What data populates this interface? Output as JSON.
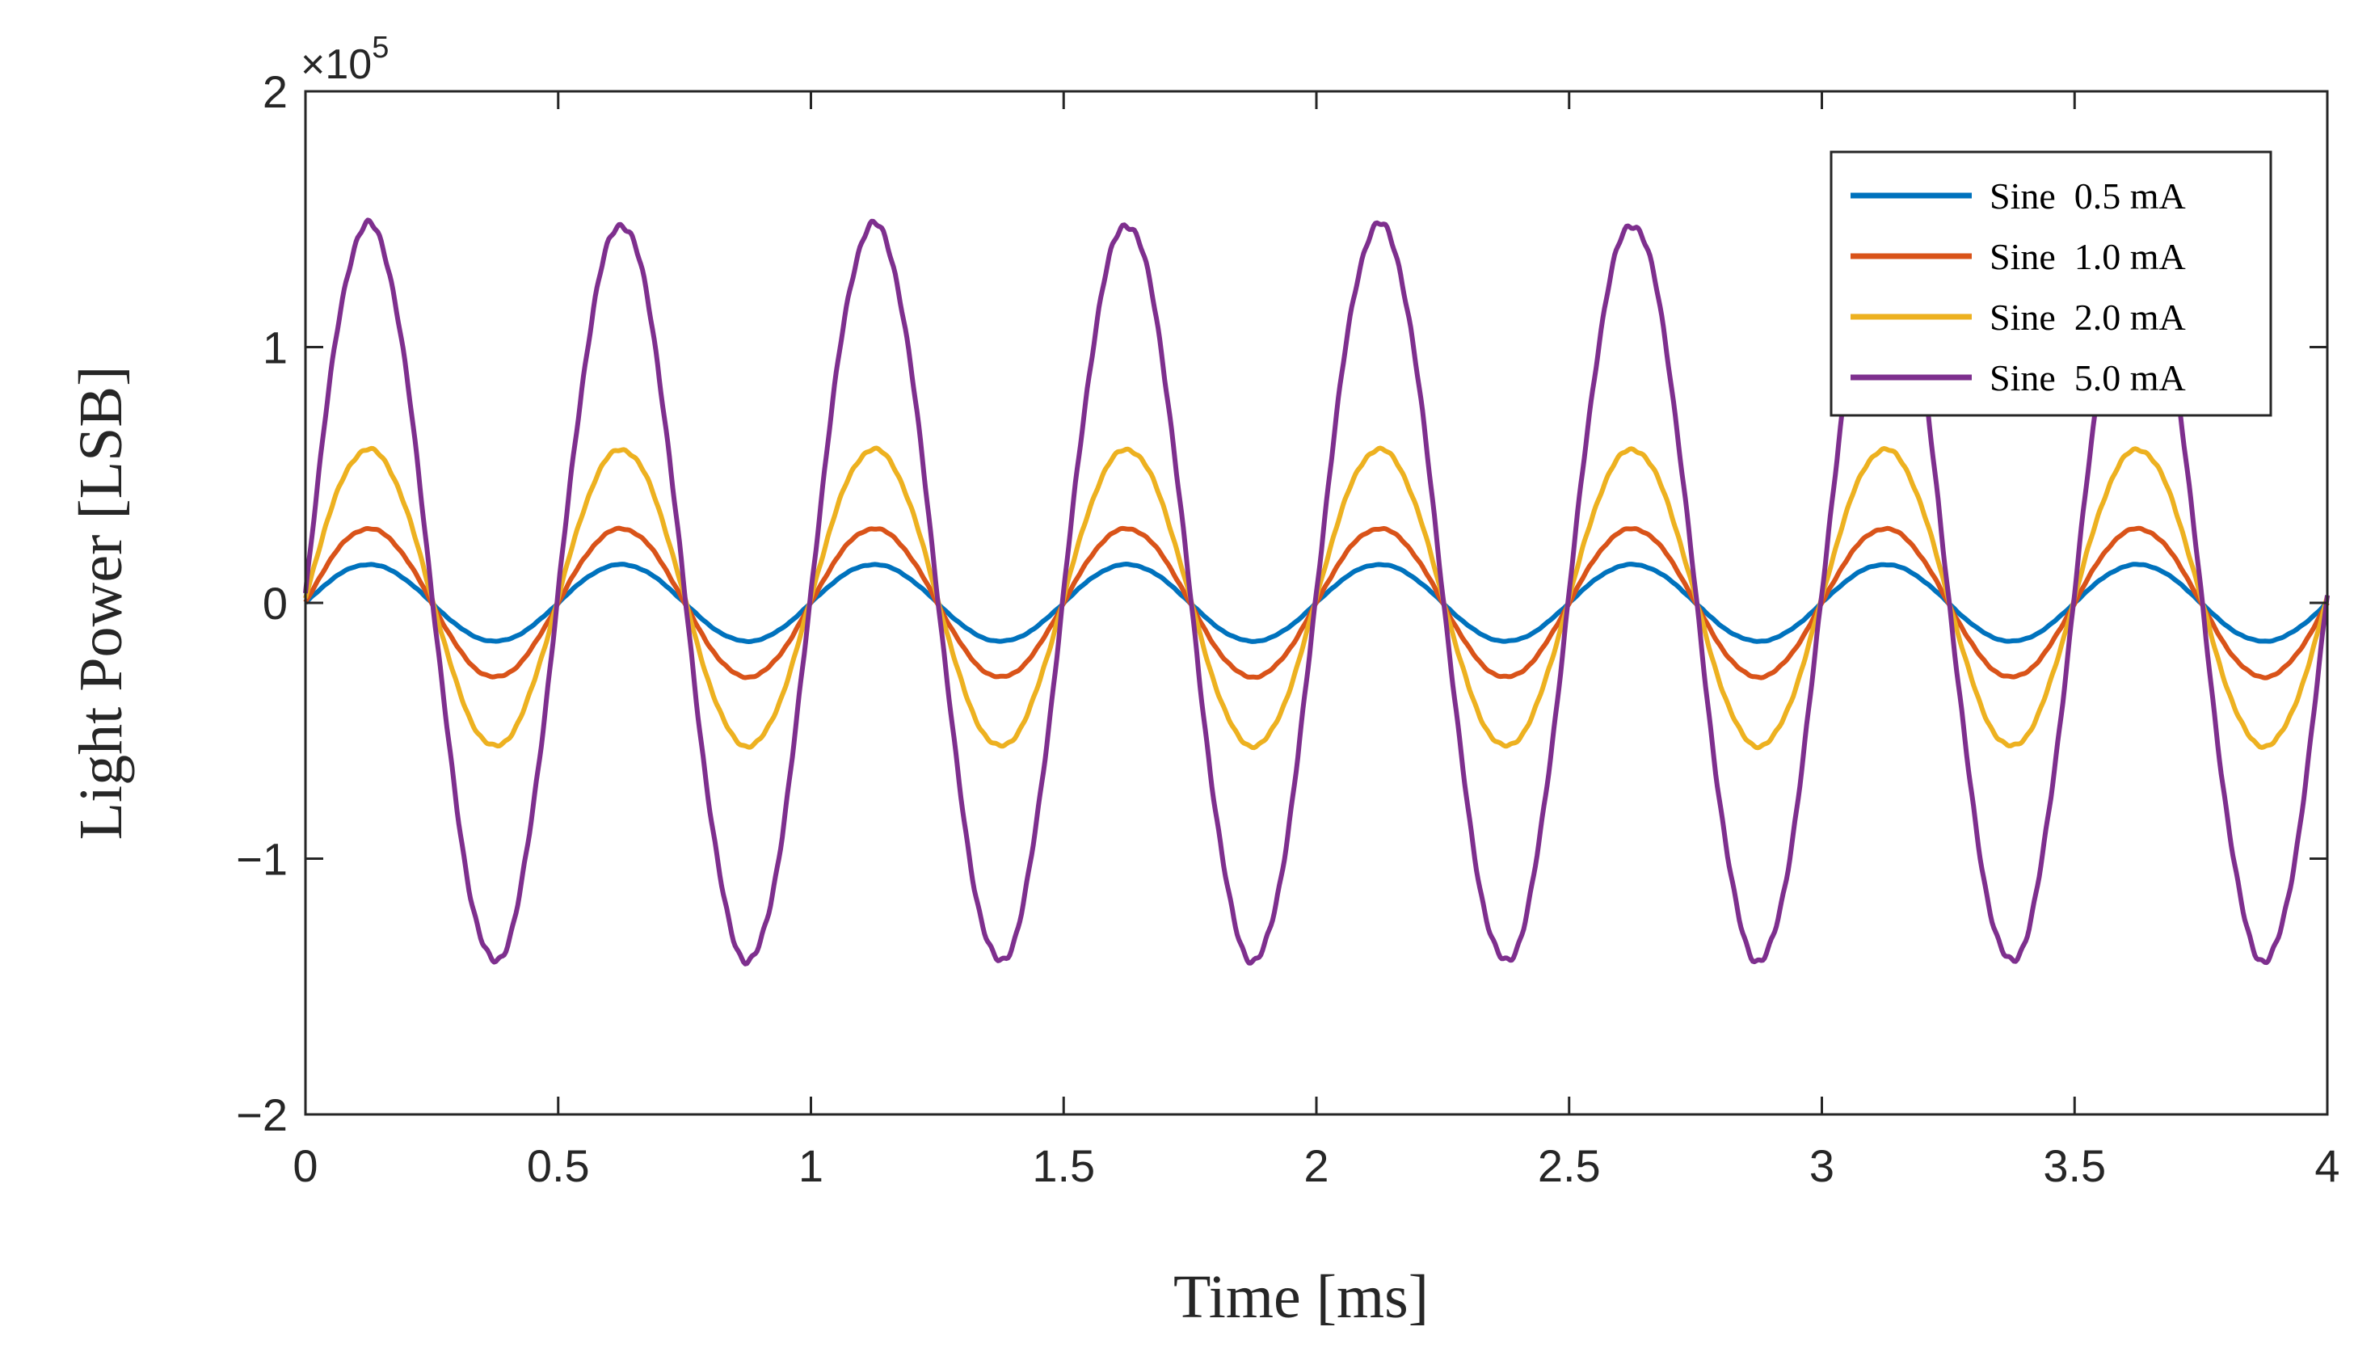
{
  "chart_data": {
    "type": "line",
    "title": "",
    "xlabel": "Time [ms]",
    "ylabel": "Light Power [LSB]",
    "exponent_base": "×10",
    "exponent_power": "5",
    "xlim": [
      0,
      4
    ],
    "ylim": [
      -2,
      2
    ],
    "x_ticks": [
      {
        "value": 0,
        "label": "0"
      },
      {
        "value": 0.5,
        "label": "0.5"
      },
      {
        "value": 1,
        "label": "1"
      },
      {
        "value": 1.5,
        "label": "1.5"
      },
      {
        "value": 2,
        "label": "2"
      },
      {
        "value": 2.5,
        "label": "2.5"
      },
      {
        "value": 3,
        "label": "3"
      },
      {
        "value": 3.5,
        "label": "3.5"
      },
      {
        "value": 4,
        "label": "4"
      }
    ],
    "y_ticks": [
      {
        "value": -2,
        "label": "−2"
      },
      {
        "value": -1,
        "label": "−1"
      },
      {
        "value": 0,
        "label": "0"
      },
      {
        "value": 1,
        "label": "1"
      },
      {
        "value": 2,
        "label": "2"
      }
    ],
    "legend_position": "top-right",
    "frequency_khz": 2,
    "series": [
      {
        "name": "Sine  0.5 mA",
        "color": "#0072BD",
        "offset": 0.0,
        "amplitude": 0.15
      },
      {
        "name": "Sine  1.0 mA",
        "color": "#D95319",
        "offset": 0.0,
        "amplitude": 0.29
      },
      {
        "name": "Sine  2.0 mA",
        "color": "#EDB120",
        "offset": 0.02,
        "amplitude": 0.58
      },
      {
        "name": "Sine  5.0 mA",
        "color": "#7E2F8E",
        "offset": 0.04,
        "amplitude": 1.44
      }
    ]
  }
}
